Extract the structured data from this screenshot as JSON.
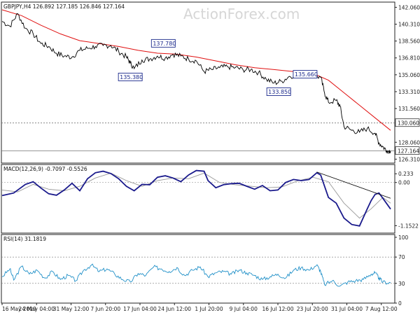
{
  "watermark": "ActionForex.com",
  "chart_data": [
    {
      "type": "candlestick",
      "header": "GBPJPY,H4   126.892 127.185 126.846 127.164",
      "y_ticks": [
        "142.060",
        "140.310",
        "138.560",
        "136.810",
        "135.060",
        "133.310",
        "131.560",
        "128.060",
        "126.310"
      ],
      "ylim": [
        125.9,
        142.6
      ],
      "price_labels": [
        {
          "text": "130.060",
          "value": 130.06,
          "kind": "level"
        },
        {
          "text": "127.164",
          "value": 127.164,
          "kind": "last"
        }
      ],
      "annotations": [
        {
          "text": "137.780",
          "x": 0.415,
          "value": 137.78
        },
        {
          "text": "135.380",
          "x": 0.33,
          "value": 135.38
        },
        {
          "text": "133.850",
          "x": 0.712,
          "value": 133.85
        },
        {
          "text": "135.660",
          "x": 0.78,
          "value": 135.66
        }
      ],
      "close_path": [
        [
          0.0,
          140.6
        ],
        [
          0.02,
          140.1
        ],
        [
          0.04,
          141.4
        ],
        [
          0.06,
          139.9
        ],
        [
          0.08,
          139.3
        ],
        [
          0.1,
          138.3
        ],
        [
          0.12,
          138.0
        ],
        [
          0.14,
          137.3
        ],
        [
          0.16,
          137.0
        ],
        [
          0.18,
          136.9
        ],
        [
          0.2,
          137.6
        ],
        [
          0.22,
          137.8
        ],
        [
          0.24,
          138.0
        ],
        [
          0.26,
          138.1
        ],
        [
          0.28,
          138.1
        ],
        [
          0.3,
          137.5
        ],
        [
          0.32,
          136.9
        ],
        [
          0.33,
          136.3
        ],
        [
          0.34,
          135.7
        ],
        [
          0.36,
          136.6
        ],
        [
          0.38,
          136.7
        ],
        [
          0.4,
          137.0
        ],
        [
          0.42,
          136.8
        ],
        [
          0.44,
          137.2
        ],
        [
          0.46,
          137.0
        ],
        [
          0.48,
          136.7
        ],
        [
          0.5,
          136.5
        ],
        [
          0.52,
          135.4
        ],
        [
          0.54,
          135.6
        ],
        [
          0.56,
          135.8
        ],
        [
          0.58,
          135.9
        ],
        [
          0.6,
          135.8
        ],
        [
          0.62,
          135.6
        ],
        [
          0.64,
          135.6
        ],
        [
          0.66,
          135.3
        ],
        [
          0.68,
          134.6
        ],
        [
          0.7,
          134.2
        ],
        [
          0.72,
          134.4
        ],
        [
          0.74,
          134.9
        ],
        [
          0.76,
          135.1
        ],
        [
          0.78,
          135.2
        ],
        [
          0.8,
          135.0
        ],
        [
          0.82,
          134.8
        ],
        [
          0.83,
          133.2
        ],
        [
          0.84,
          132.2
        ],
        [
          0.86,
          132.4
        ],
        [
          0.87,
          131.8
        ],
        [
          0.88,
          129.7
        ],
        [
          0.9,
          129.3
        ],
        [
          0.92,
          129.1
        ],
        [
          0.94,
          129.5
        ],
        [
          0.96,
          129.0
        ],
        [
          0.97,
          128.0
        ],
        [
          0.98,
          127.6
        ],
        [
          0.99,
          127.2
        ],
        [
          1.0,
          127.16
        ]
      ],
      "ma_path": [
        [
          0.0,
          141.8
        ],
        [
          0.05,
          141.2
        ],
        [
          0.1,
          140.2
        ],
        [
          0.15,
          139.3
        ],
        [
          0.2,
          138.6
        ],
        [
          0.25,
          138.3
        ],
        [
          0.3,
          138.0
        ],
        [
          0.35,
          137.6
        ],
        [
          0.4,
          137.3
        ],
        [
          0.45,
          137.2
        ],
        [
          0.5,
          136.9
        ],
        [
          0.55,
          136.5
        ],
        [
          0.6,
          136.1
        ],
        [
          0.65,
          135.8
        ],
        [
          0.7,
          135.6
        ],
        [
          0.75,
          135.4
        ],
        [
          0.8,
          135.2
        ],
        [
          0.84,
          134.5
        ],
        [
          0.88,
          133.2
        ],
        [
          0.92,
          131.9
        ],
        [
          0.96,
          130.6
        ],
        [
          1.0,
          129.3
        ]
      ],
      "colors": {
        "price": "#000000",
        "ma": "#e01010"
      }
    },
    {
      "type": "line",
      "header": "MACD(12,26,9) -0.7097 -0.5526",
      "y_ticks": [
        "0.233",
        "0.00",
        "-1.1522"
      ],
      "ylim": [
        -1.35,
        0.48
      ],
      "zero": 0.0,
      "macd": [
        [
          0.0,
          -0.35
        ],
        [
          0.03,
          -0.28
        ],
        [
          0.06,
          -0.05
        ],
        [
          0.08,
          0.02
        ],
        [
          0.1,
          -0.15
        ],
        [
          0.12,
          -0.3
        ],
        [
          0.14,
          -0.34
        ],
        [
          0.16,
          -0.2
        ],
        [
          0.18,
          -0.02
        ],
        [
          0.2,
          -0.22
        ],
        [
          0.22,
          0.1
        ],
        [
          0.24,
          0.26
        ],
        [
          0.26,
          0.3
        ],
        [
          0.28,
          0.24
        ],
        [
          0.3,
          0.1
        ],
        [
          0.32,
          -0.1
        ],
        [
          0.34,
          -0.22
        ],
        [
          0.36,
          -0.05
        ],
        [
          0.38,
          -0.06
        ],
        [
          0.4,
          0.14
        ],
        [
          0.42,
          0.18
        ],
        [
          0.44,
          0.12
        ],
        [
          0.46,
          0.02
        ],
        [
          0.48,
          0.2
        ],
        [
          0.5,
          0.32
        ],
        [
          0.52,
          0.3
        ],
        [
          0.53,
          0.05
        ],
        [
          0.55,
          -0.14
        ],
        [
          0.57,
          -0.06
        ],
        [
          0.59,
          -0.03
        ],
        [
          0.61,
          -0.02
        ],
        [
          0.63,
          -0.1
        ],
        [
          0.65,
          -0.18
        ],
        [
          0.67,
          -0.08
        ],
        [
          0.69,
          -0.22
        ],
        [
          0.71,
          -0.2
        ],
        [
          0.73,
          0.0
        ],
        [
          0.75,
          0.08
        ],
        [
          0.77,
          0.05
        ],
        [
          0.79,
          0.08
        ],
        [
          0.81,
          0.26
        ],
        [
          0.82,
          0.2
        ],
        [
          0.84,
          -0.4
        ],
        [
          0.86,
          -0.55
        ],
        [
          0.88,
          -0.95
        ],
        [
          0.9,
          -1.12
        ],
        [
          0.92,
          -1.16
        ],
        [
          0.94,
          -0.7
        ],
        [
          0.95,
          -0.48
        ],
        [
          0.96,
          -0.32
        ],
        [
          0.97,
          -0.28
        ],
        [
          0.98,
          -0.42
        ],
        [
          1.0,
          -0.71
        ]
      ],
      "signal": [
        [
          0.0,
          -0.2
        ],
        [
          0.04,
          -0.25
        ],
        [
          0.08,
          -0.05
        ],
        [
          0.12,
          -0.18
        ],
        [
          0.16,
          -0.22
        ],
        [
          0.2,
          -0.1
        ],
        [
          0.24,
          0.12
        ],
        [
          0.28,
          0.25
        ],
        [
          0.32,
          0.05
        ],
        [
          0.36,
          -0.1
        ],
        [
          0.4,
          0.05
        ],
        [
          0.44,
          0.12
        ],
        [
          0.48,
          0.1
        ],
        [
          0.52,
          0.25
        ],
        [
          0.56,
          0.0
        ],
        [
          0.6,
          -0.06
        ],
        [
          0.64,
          -0.1
        ],
        [
          0.68,
          -0.14
        ],
        [
          0.72,
          -0.12
        ],
        [
          0.76,
          0.04
        ],
        [
          0.8,
          0.14
        ],
        [
          0.84,
          0.02
        ],
        [
          0.88,
          -0.55
        ],
        [
          0.92,
          -0.95
        ],
        [
          0.95,
          -0.7
        ],
        [
          0.98,
          -0.4
        ],
        [
          1.0,
          -0.55
        ]
      ],
      "trendline": [
        [
          0.81,
          0.28
        ],
        [
          1.0,
          -0.42
        ]
      ],
      "colors": {
        "macd": "#1a1a8c",
        "signal": "#999999",
        "trend": "#000000"
      }
    },
    {
      "type": "line",
      "header": "RSI(14) 31.1819",
      "y_ticks": [
        "100",
        "70",
        "30",
        "0"
      ],
      "ylim": [
        0,
        100
      ],
      "levels": [
        70,
        30
      ],
      "values": [
        [
          0.0,
          40
        ],
        [
          0.02,
          52
        ],
        [
          0.03,
          35
        ],
        [
          0.05,
          56
        ],
        [
          0.07,
          44
        ],
        [
          0.09,
          50
        ],
        [
          0.11,
          38
        ],
        [
          0.13,
          48
        ],
        [
          0.15,
          36
        ],
        [
          0.17,
          42
        ],
        [
          0.19,
          34
        ],
        [
          0.21,
          50
        ],
        [
          0.23,
          58
        ],
        [
          0.25,
          48
        ],
        [
          0.27,
          52
        ],
        [
          0.29,
          44
        ],
        [
          0.31,
          36
        ],
        [
          0.33,
          32
        ],
        [
          0.35,
          45
        ],
        [
          0.37,
          42
        ],
        [
          0.39,
          55
        ],
        [
          0.41,
          52
        ],
        [
          0.43,
          48
        ],
        [
          0.45,
          54
        ],
        [
          0.47,
          42
        ],
        [
          0.49,
          50
        ],
        [
          0.51,
          55
        ],
        [
          0.53,
          40
        ],
        [
          0.55,
          46
        ],
        [
          0.57,
          48
        ],
        [
          0.59,
          44
        ],
        [
          0.61,
          50
        ],
        [
          0.63,
          46
        ],
        [
          0.65,
          42
        ],
        [
          0.67,
          36
        ],
        [
          0.69,
          40
        ],
        [
          0.71,
          44
        ],
        [
          0.73,
          38
        ],
        [
          0.75,
          50
        ],
        [
          0.77,
          54
        ],
        [
          0.79,
          50
        ],
        [
          0.81,
          58
        ],
        [
          0.82,
          48
        ],
        [
          0.83,
          28
        ],
        [
          0.85,
          34
        ],
        [
          0.87,
          26
        ],
        [
          0.89,
          32
        ],
        [
          0.91,
          34
        ],
        [
          0.93,
          36
        ],
        [
          0.95,
          44
        ],
        [
          0.96,
          46
        ],
        [
          0.97,
          38
        ],
        [
          0.98,
          32
        ],
        [
          1.0,
          31
        ]
      ],
      "colors": {
        "rsi": "#2090c8",
        "level": "#777777"
      }
    }
  ],
  "x_labels": [
    "16 May 2019",
    "24 May 04:00",
    "31 May 12:00",
    "7 Jun 20:00",
    "17 Jun 04:00",
    "24 Jun 12:00",
    "1 Jul 20:00",
    "9 Jul 04:00",
    "16 Jul 12:00",
    "23 Jul 20:00",
    "31 Jul 04:00",
    "7 Aug 12:00"
  ]
}
